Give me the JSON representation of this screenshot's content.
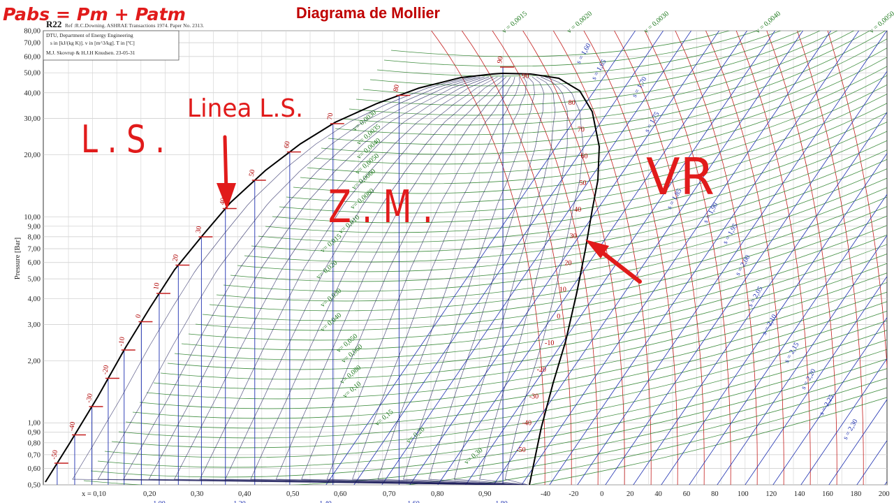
{
  "slide": {
    "title": "Diagrama de Mollier",
    "formula": "Pabs = Pm + Patm"
  },
  "chart_data": {
    "type": "line",
    "substance": "R22",
    "reference": "Ref :R.C.Downing. ASHRAE Transactions 1974. Paper No. 2313.",
    "info_box": [
      "DTU, Department of Energy Engineering",
      "s in [kJ/(kg K)]. v in [m^3/kg]. T in [ºC]",
      "M.J. Skovrup & H.J.H Knudsen. 23-05-31"
    ],
    "ylabel": "Pressure [Bar]",
    "yscale": "log",
    "ylim": [
      0.5,
      80
    ],
    "y_ticks": [
      "80,00",
      "70,00",
      "60,00",
      "50,00",
      "40,00",
      "30,00",
      "20,00",
      "10,00",
      "9,00",
      "8,00",
      "7,00",
      "6,00",
      "5,00",
      "4,00",
      "3,00",
      "2,00",
      "1,00",
      "0,90",
      "0,80",
      "0,70",
      "0,60",
      "0,50"
    ],
    "y_tick_values": [
      80,
      70,
      60,
      50,
      40,
      30,
      20,
      10,
      9,
      8,
      7,
      6,
      5,
      4,
      3,
      2,
      1,
      0.9,
      0.8,
      0.7,
      0.6,
      0.5
    ],
    "x_quality_labels": [
      "x = 0,10",
      "0,20",
      "0,30",
      "0,40",
      "0,50",
      "0,60",
      "0,70",
      "0,80",
      "0,90"
    ],
    "x_temperature_labels": [
      "-40",
      "-20",
      "0",
      "20",
      "40",
      "60",
      "80",
      "100",
      "120",
      "140",
      "160",
      "180",
      "200"
    ],
    "saturated_liquid_temperatures": [
      "-50",
      "-40",
      "-30",
      "-20",
      "-10",
      "0",
      "10",
      "20",
      "30",
      "40",
      "50",
      "60",
      "70",
      "80",
      "90"
    ],
    "saturated_vapor_temperatures": [
      "90",
      "80",
      "70",
      "60",
      "50",
      "40",
      "30",
      "20",
      "10",
      "0",
      "-10",
      "-20",
      "-30",
      "-40",
      "-50"
    ],
    "specific_volume_labels": [
      {
        "text": "v = 0,0015"
      },
      {
        "text": "v = 0,0020"
      },
      {
        "text": "v = 0,0030"
      },
      {
        "text": "v = 0,0040"
      },
      {
        "text": "v = 0,0050"
      },
      {
        "text": "v= 0,0030"
      },
      {
        "text": "v= 0,0035"
      },
      {
        "text": "v= 0,0040"
      },
      {
        "text": "v= 0,0050"
      },
      {
        "text": "v= 0,0060"
      },
      {
        "text": "v= 0,0080"
      },
      {
        "text": "v= 0,010"
      },
      {
        "text": "v= 0,015"
      },
      {
        "text": "v= 0,020"
      },
      {
        "text": "v= 0,030"
      },
      {
        "text": "v= 0,040"
      },
      {
        "text": "v= 0,050"
      },
      {
        "text": "v= 0,060"
      },
      {
        "text": "v= 0,080"
      },
      {
        "text": "v= 0,10"
      },
      {
        "text": "v= 0,15"
      },
      {
        "text": "v= 0,20"
      },
      {
        "text": "v= 0,30"
      }
    ],
    "entropy_labels": [
      "s = 1,60",
      "s = 1,65",
      "s = 1,70",
      "s = 1,75",
      "s = 1,85",
      "s = 1,90",
      "s = 1,95",
      "s = 2,00",
      "s = 2,05",
      "s = 2,10",
      "s = 2,15",
      "s = 2,20",
      "s = 2,25",
      "s = 2,30"
    ],
    "bottom_enthalpy_partial": [
      "1,00",
      "1,20",
      "1,40",
      "1,60",
      "1,80"
    ],
    "grid": true
  },
  "annotations": {
    "ls_label": "L . S .",
    "linea_label": "Linea L.S.",
    "zm_label": "Z . M .",
    "vr_label": "VR"
  },
  "colors": {
    "saturation_dome": "#000000",
    "isotherms": "#c41e1e",
    "isentropes_and_quality": "#1d2fb0",
    "isochores": "#1f7a1f",
    "annotation": "#e11b1b",
    "title": "#c00000"
  }
}
